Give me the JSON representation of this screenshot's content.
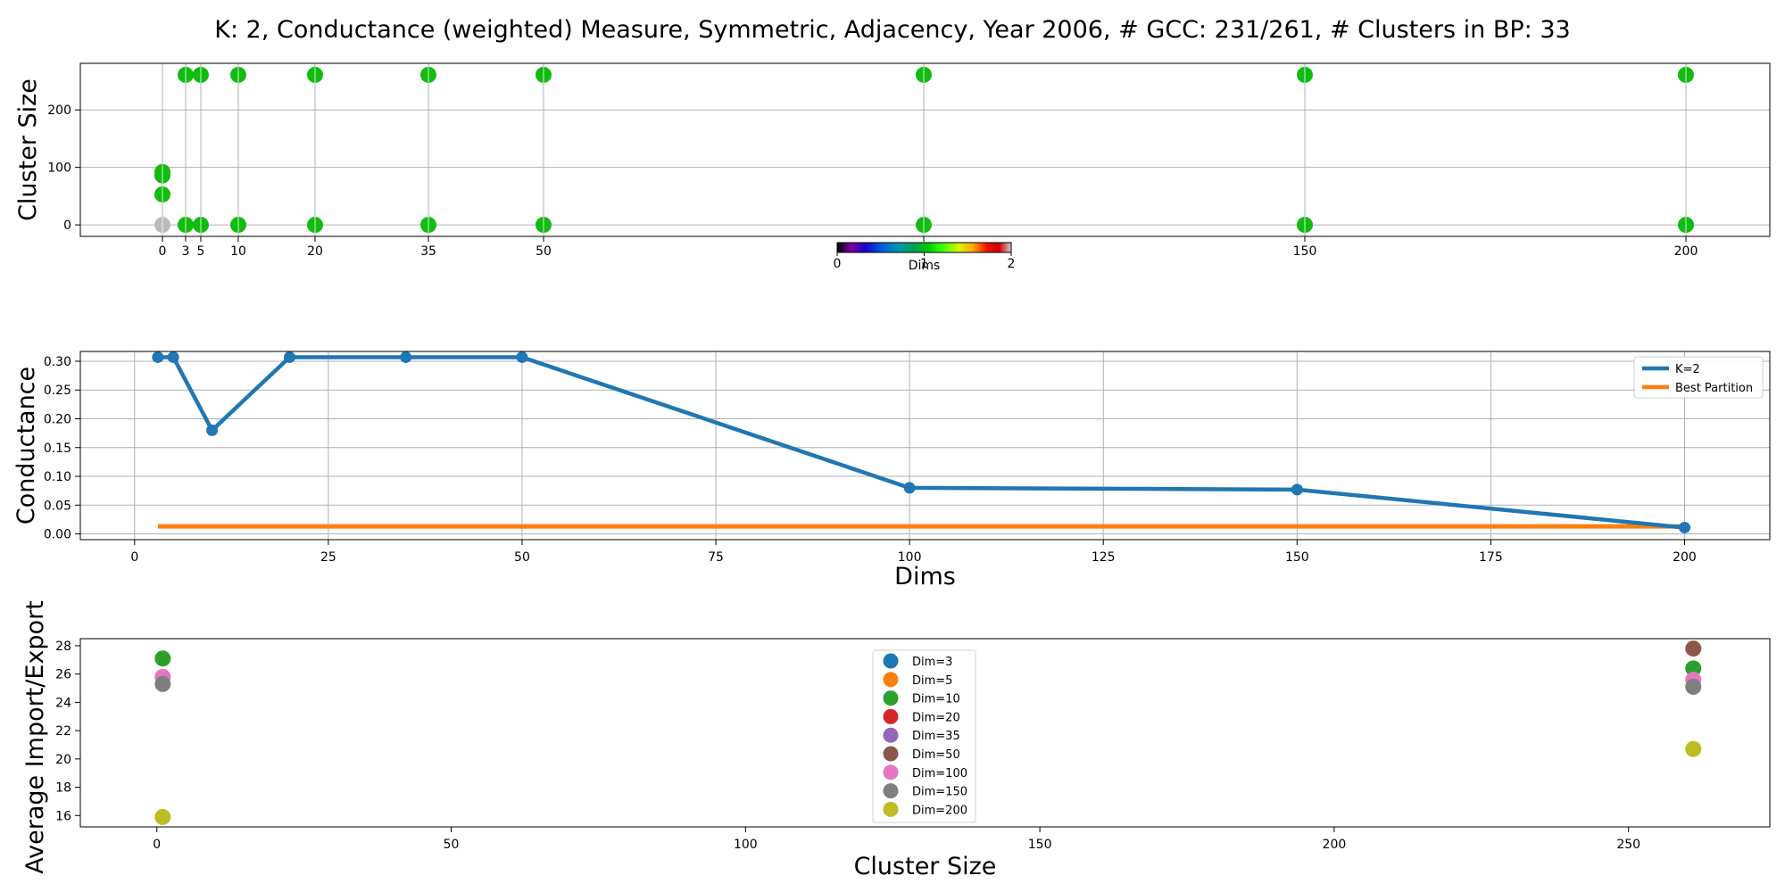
{
  "figure": {
    "title": "K: 2, Conductance (weighted) Measure, Symmetric, Adjacency, Year 2006, # GCC: 231/261, # Clusters in BP: 33"
  },
  "colors": {
    "cluster_point": "#11bb11",
    "cluster_point_gray": "#bbbbbb",
    "line_k2": "#1f77b4",
    "line_bp": "#ff7f0e",
    "grid": "#b0b0b0",
    "dim_colors": [
      "#1f77b4",
      "#ff7f0e",
      "#2ca02c",
      "#d62728",
      "#9467bd",
      "#8c564b",
      "#e377c2",
      "#7f7f7f",
      "#bcbd22"
    ]
  },
  "chart_data": [
    {
      "type": "scatter",
      "ylabel": "Cluster Size",
      "xlabel": "",
      "x_ticks": [
        0,
        3,
        5,
        10,
        20,
        35,
        50,
        100,
        150,
        200
      ],
      "x_tick_labels": [
        "0",
        "3",
        "5",
        "10",
        "20",
        "35",
        "50",
        "",
        "150",
        "200"
      ],
      "ylim": [
        -20,
        281
      ],
      "y_ticks": [
        0,
        100,
        200
      ],
      "grid": true,
      "stems": [
        0,
        3,
        5,
        10,
        20,
        35,
        50,
        100,
        150,
        200
      ],
      "points": [
        {
          "x": 0,
          "y": 0,
          "gray": true
        },
        {
          "x": 0,
          "y": 53
        },
        {
          "x": 0,
          "y": 86
        },
        {
          "x": 0,
          "y": 92
        },
        {
          "x": 3,
          "y": 0
        },
        {
          "x": 3,
          "y": 261
        },
        {
          "x": 5,
          "y": 0
        },
        {
          "x": 5,
          "y": 261
        },
        {
          "x": 10,
          "y": 0
        },
        {
          "x": 10,
          "y": 261
        },
        {
          "x": 20,
          "y": 0
        },
        {
          "x": 20,
          "y": 261
        },
        {
          "x": 35,
          "y": 0
        },
        {
          "x": 35,
          "y": 261
        },
        {
          "x": 50,
          "y": 0
        },
        {
          "x": 50,
          "y": 261
        },
        {
          "x": 100,
          "y": 0
        },
        {
          "x": 100,
          "y": 261
        },
        {
          "x": 150,
          "y": 0
        },
        {
          "x": 150,
          "y": 261
        },
        {
          "x": 200,
          "y": 0
        },
        {
          "x": 200,
          "y": 261
        }
      ],
      "colorbar": {
        "label": "Dims",
        "tick_labels": [
          "0",
          "1",
          "2"
        ]
      }
    },
    {
      "type": "line",
      "ylabel": "Conductance",
      "xlabel": "Dims",
      "xlim": [
        -7,
        211
      ],
      "x_ticks": [
        0,
        25,
        50,
        75,
        100,
        125,
        150,
        175,
        200
      ],
      "ylim": [
        -0.01,
        0.317
      ],
      "y_ticks": [
        0.0,
        0.05,
        0.1,
        0.15,
        0.2,
        0.25,
        0.3
      ],
      "y_tick_labels": [
        "0.00",
        "0.05",
        "0.10",
        "0.15",
        "0.20",
        "0.25",
        "0.30"
      ],
      "grid": true,
      "legend_position": "top-right",
      "series": [
        {
          "name": "K=2",
          "x": [
            3,
            5,
            10,
            20,
            35,
            50,
            100,
            150,
            200
          ],
          "y": [
            0.307,
            0.307,
            0.18,
            0.307,
            0.307,
            0.307,
            0.08,
            0.077,
            0.011
          ],
          "markers": true
        },
        {
          "name": "Best Partition",
          "x": [
            3,
            200
          ],
          "y": [
            0.013,
            0.013
          ],
          "markers": false
        }
      ]
    },
    {
      "type": "scatter",
      "ylabel": "Average Import/Export",
      "xlabel": "Cluster Size",
      "xlim": [
        -13,
        274
      ],
      "x_ticks": [
        0,
        50,
        100,
        150,
        200,
        250
      ],
      "ylim": [
        15.2,
        28.5
      ],
      "y_ticks": [
        16,
        18,
        20,
        22,
        24,
        26,
        28
      ],
      "grid": false,
      "legend_position": "center",
      "series": [
        {
          "name": "Dim=3",
          "points": []
        },
        {
          "name": "Dim=5",
          "points": []
        },
        {
          "name": "Dim=10",
          "points": [
            {
              "x": 1,
              "y": 27.1
            },
            {
              "x": 261,
              "y": 26.4
            }
          ]
        },
        {
          "name": "Dim=20",
          "points": []
        },
        {
          "name": "Dim=35",
          "points": []
        },
        {
          "name": "Dim=50",
          "points": [
            {
              "x": 261,
              "y": 27.8
            }
          ]
        },
        {
          "name": "Dim=100",
          "points": [
            {
              "x": 1,
              "y": 25.8
            },
            {
              "x": 261,
              "y": 25.6
            }
          ]
        },
        {
          "name": "Dim=150",
          "points": [
            {
              "x": 1,
              "y": 25.3
            },
            {
              "x": 261,
              "y": 25.1
            }
          ]
        },
        {
          "name": "Dim=200",
          "points": [
            {
              "x": 1,
              "y": 15.9
            },
            {
              "x": 261,
              "y": 20.7
            }
          ]
        }
      ]
    }
  ]
}
